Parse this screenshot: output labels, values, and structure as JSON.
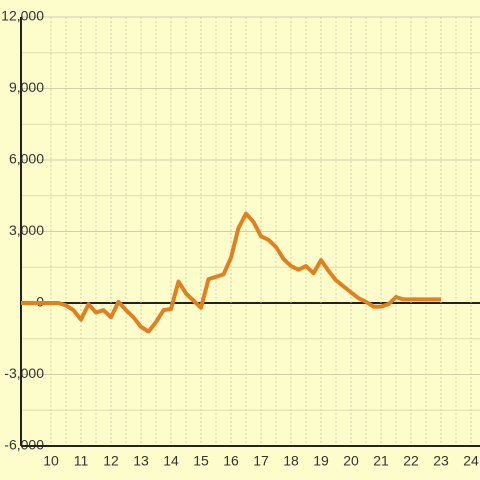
{
  "chart_data": {
    "type": "line",
    "x": [
      9,
      9.5,
      10,
      10.25,
      10.5,
      10.75,
      11,
      11.25,
      11.5,
      11.75,
      12,
      12.25,
      12.5,
      12.75,
      13,
      13.25,
      13.5,
      13.75,
      14,
      14.25,
      14.5,
      14.75,
      15,
      15.25,
      15.5,
      15.75,
      16,
      16.25,
      16.5,
      16.75,
      17,
      17.25,
      17.5,
      17.75,
      18,
      18.25,
      18.5,
      18.75,
      19,
      19.25,
      19.5,
      19.75,
      20,
      20.25,
      20.5,
      20.75,
      21,
      21.25,
      21.5,
      21.75,
      22,
      22.5,
      23
    ],
    "series": [
      {
        "color": "#e2801f",
        "values": [
          0,
          0,
          0,
          0,
          -100,
          -300,
          -700,
          -50,
          -400,
          -300,
          -600,
          50,
          -300,
          -600,
          -1000,
          -1200,
          -800,
          -300,
          -250,
          900,
          400,
          100,
          -200,
          1000,
          1100,
          1200,
          1900,
          3150,
          3750,
          3400,
          2800,
          2650,
          2350,
          1850,
          1550,
          1400,
          1550,
          1250,
          1800,
          1350,
          950,
          700,
          450,
          200,
          50,
          -150,
          -150,
          -50,
          250,
          150,
          150,
          150,
          150
        ]
      }
    ],
    "xlim": [
      9,
      24.3
    ],
    "xticks": [
      10,
      11,
      12,
      13,
      14,
      15,
      16,
      17,
      18,
      19,
      20,
      21,
      22,
      23,
      24
    ],
    "ylim": [
      -6000,
      12000
    ],
    "yticks": [
      {
        "value": -6000,
        "label": "-6,000"
      },
      {
        "value": -3000,
        "label": "-3,000"
      },
      0,
      {
        "value": 3000,
        "label": "3,000"
      },
      {
        "value": 6000,
        "label": "6,000"
      },
      {
        "value": 9000,
        "label": "9,000"
      },
      {
        "value": 12000,
        "label": "12,000"
      }
    ],
    "grid": true
  }
}
